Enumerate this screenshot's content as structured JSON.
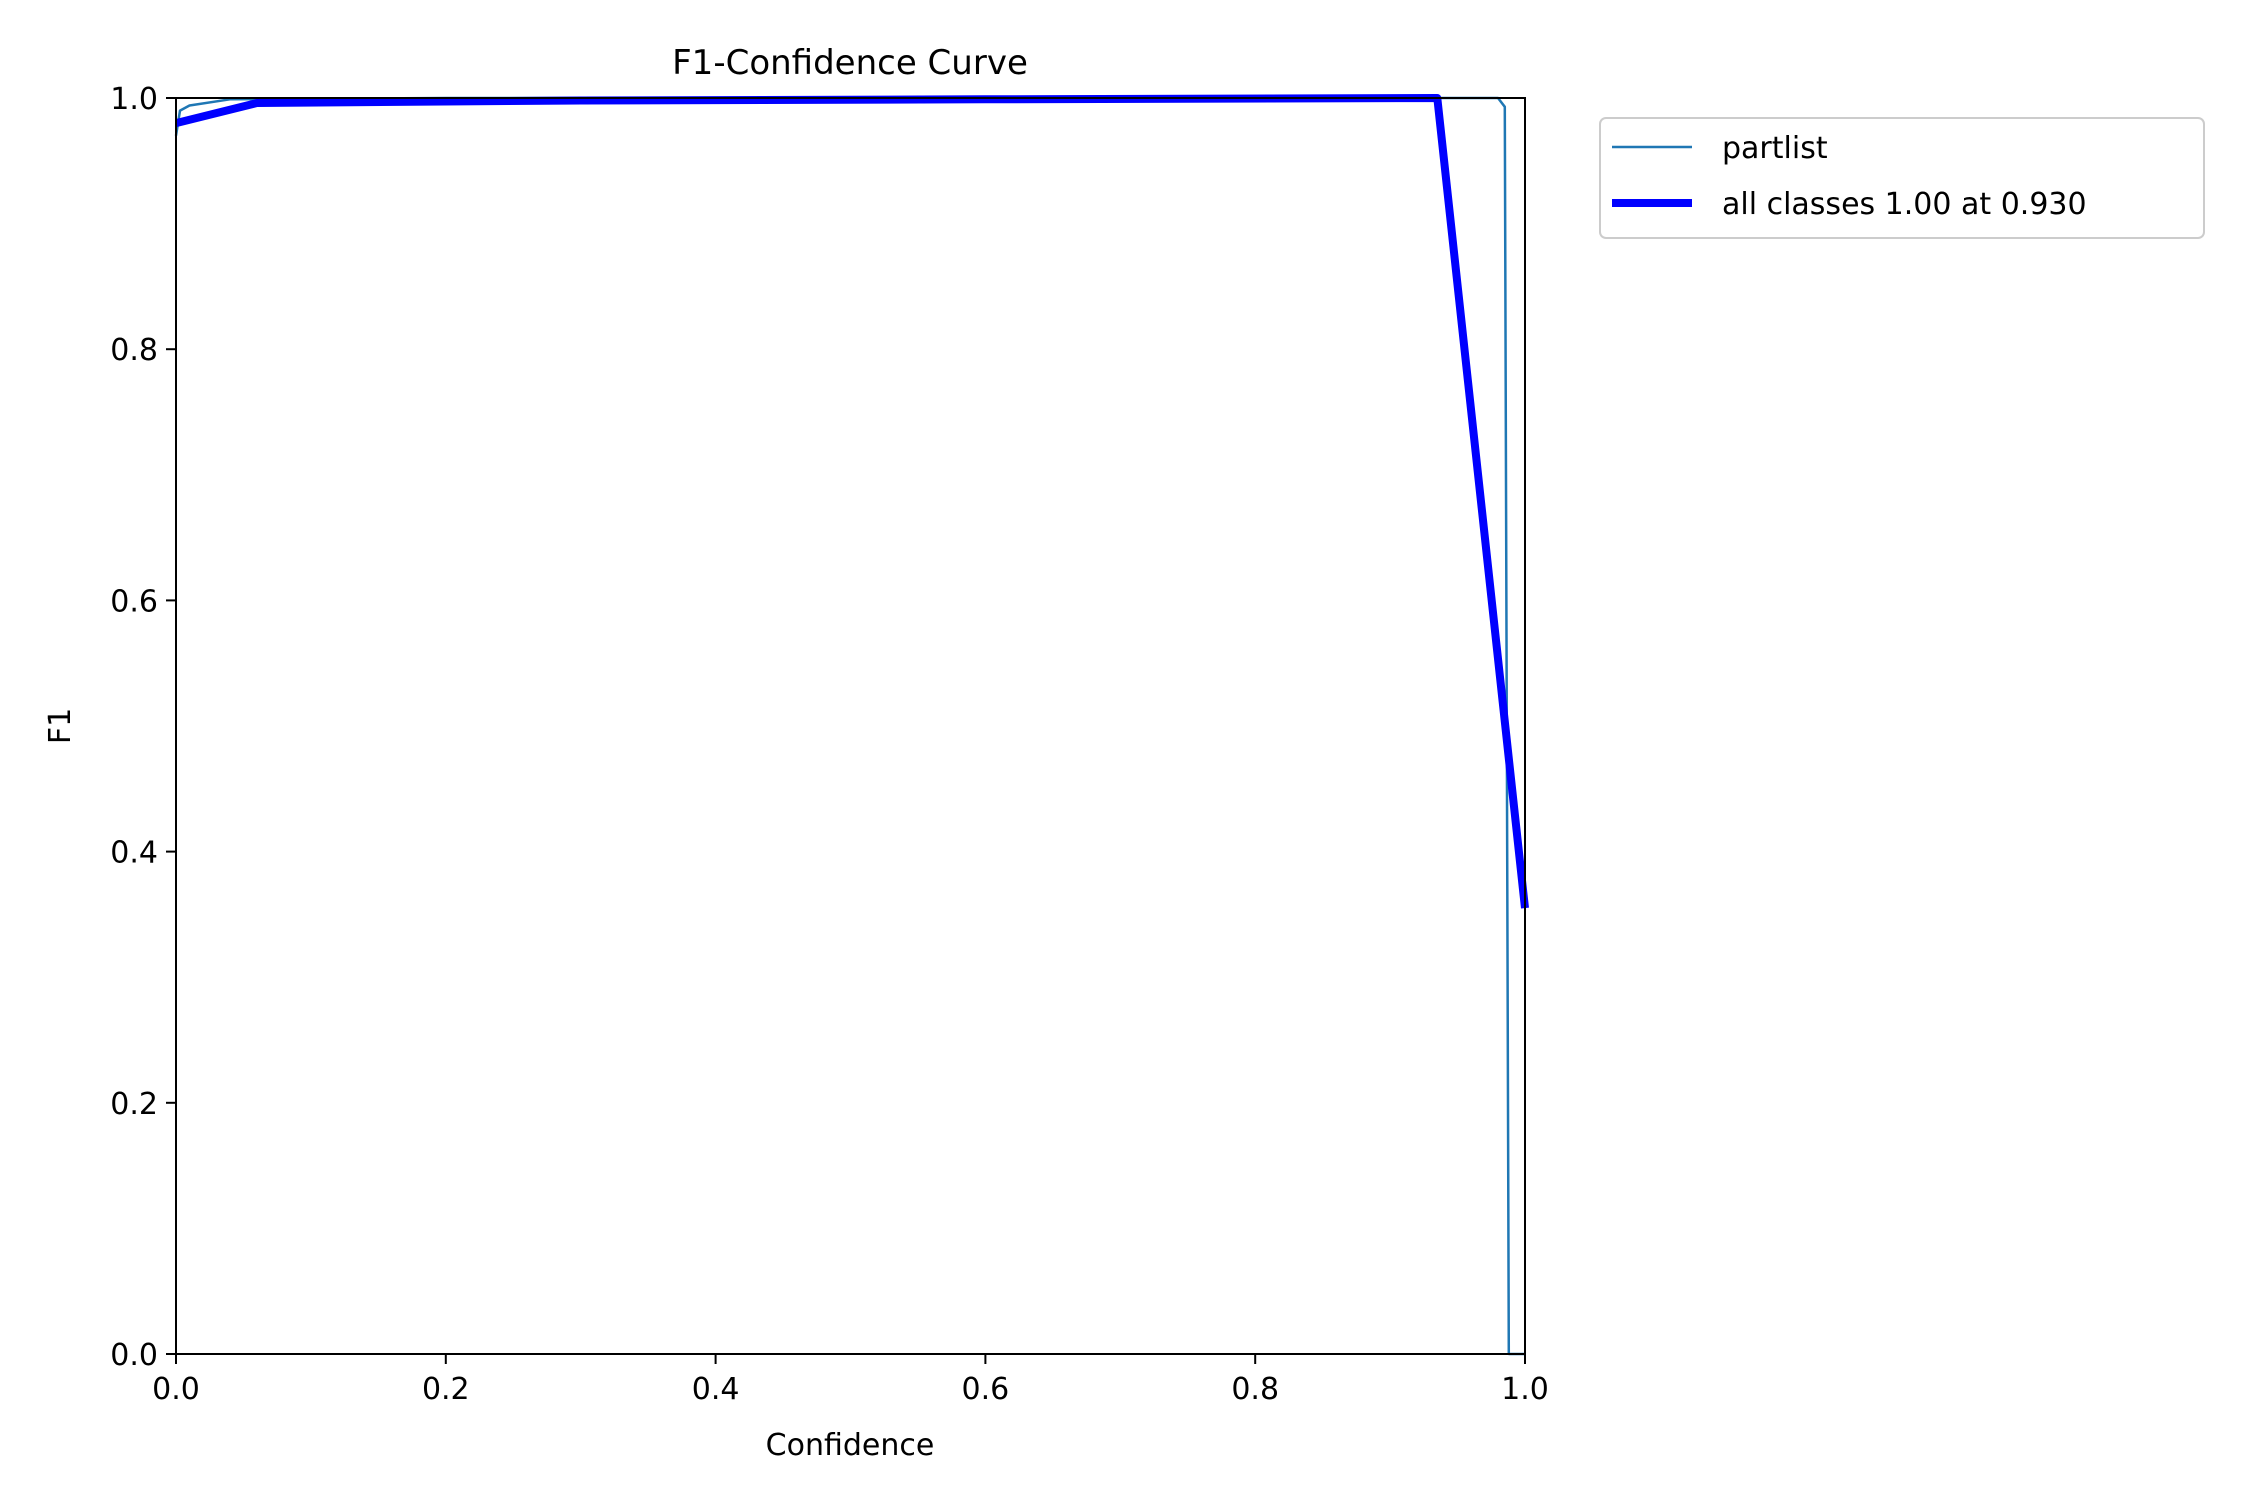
{
  "chart_data": {
    "type": "line",
    "title": "F1-Confidence Curve",
    "xlabel": "Confidence",
    "ylabel": "F1",
    "xlim": [
      0,
      1
    ],
    "ylim": [
      0,
      1
    ],
    "xticks": [
      "0.0",
      "0.2",
      "0.4",
      "0.6",
      "0.8",
      "1.0"
    ],
    "yticks": [
      "0.0",
      "0.2",
      "0.4",
      "0.6",
      "0.8",
      "1.0"
    ],
    "grid": false,
    "legend_position": "outside top-right",
    "series": [
      {
        "name": "partlist",
        "color": "#1f77b4",
        "style": "thin",
        "points": [
          [
            0.0,
            0.97
          ],
          [
            0.003,
            0.99
          ],
          [
            0.01,
            0.994
          ],
          [
            0.04,
            0.999
          ],
          [
            0.2,
            1.0
          ],
          [
            0.6,
            1.0
          ],
          [
            0.9,
            1.0
          ],
          [
            0.98,
            1.0
          ],
          [
            0.985,
            0.993
          ],
          [
            0.988,
            0.0
          ],
          [
            1.0,
            0.0
          ]
        ]
      },
      {
        "name": "all classes 1.00 at 0.930",
        "color": "#0000ff",
        "style": "thick",
        "points": [
          [
            0.0,
            0.98
          ],
          [
            0.06,
            0.996
          ],
          [
            0.3,
            0.998
          ],
          [
            0.6,
            0.999
          ],
          [
            0.935,
            1.0
          ],
          [
            1.0,
            0.355
          ]
        ]
      }
    ]
  }
}
